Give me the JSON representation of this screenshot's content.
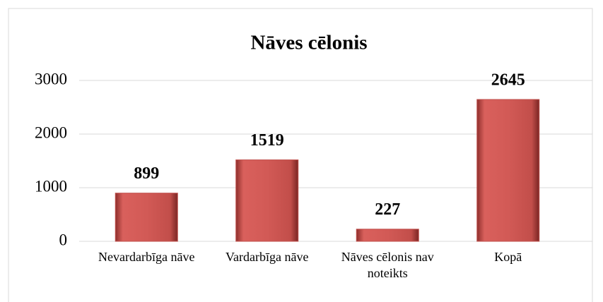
{
  "chart_data": {
    "type": "bar",
    "title": "Nāves cēlonis",
    "categories": [
      "Nevardarbīga nāve",
      "Vardarbīga nāve",
      "Nāves cēlonis nav noteikts",
      "Kopā"
    ],
    "values": [
      899,
      1519,
      227,
      2645
    ],
    "color": "#c0504d",
    "ylim": [
      0,
      3000
    ],
    "yticks": [
      0,
      1000,
      2000,
      3000
    ],
    "grid": true
  }
}
